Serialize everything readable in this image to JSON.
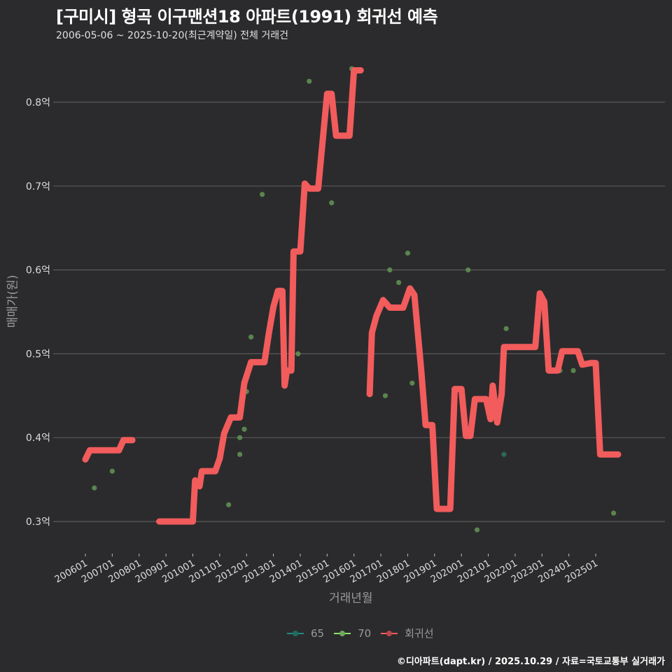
{
  "header": {
    "title": "[구미시] 형곡 이구맨션18 아파트(1991) 회귀선 예측",
    "subtitle": "2006-05-06 ~ 2025-10-20(최근계약일) 전체 거래건"
  },
  "axes": {
    "ylabel": "매매가(원)",
    "xlabel": "거래년월",
    "yticks": [
      "0.3억",
      "0.4억",
      "0.5억",
      "0.6억",
      "0.7억",
      "0.8억"
    ],
    "xticks": [
      "200601",
      "200701",
      "200801",
      "200901",
      "201001",
      "201101",
      "201201",
      "201301",
      "201401",
      "201501",
      "201601",
      "201701",
      "201801",
      "201901",
      "202001",
      "202101",
      "202201",
      "202301",
      "202401",
      "202501"
    ]
  },
  "legend": {
    "items": [
      {
        "label": "65",
        "color": "#1f8a82"
      },
      {
        "label": "70",
        "color": "#8ee26b"
      },
      {
        "label": "회귀선",
        "color": "#f25c5c"
      }
    ]
  },
  "footer": {
    "credit": "©디아파트(dapt.kr) / 2025.10.29 / 자료=국토교통부 실거래가"
  },
  "colors": {
    "background": "#2b2b2d",
    "grid": "#5a5a5a",
    "regression": "#f25c5c",
    "point70": "#5f8f52",
    "point65": "#2f6e5c"
  },
  "chart_data": {
    "type": "line",
    "title": "[구미시] 형곡 이구맨션18 아파트(1991) 회귀선 예측",
    "subtitle": "2006-05-06 ~ 2025-10-20(최근계약일) 전체 거래건",
    "xlabel": "거래년월",
    "ylabel": "매매가(원)",
    "yunit": "억",
    "ylim": [
      0.27,
      0.86
    ],
    "grid": true,
    "legend_position": "bottom",
    "series": [
      {
        "name": "회귀선",
        "type": "step-line",
        "segments": [
          [
            [
              "2006-01",
              0.374
            ],
            [
              "2006-03",
              0.385
            ],
            [
              "2007-04",
              0.385
            ],
            [
              "2007-06",
              0.397
            ],
            [
              "2007-10",
              0.397
            ]
          ],
          [
            [
              "2008-10",
              0.3
            ],
            [
              "2010-01",
              0.3
            ],
            [
              "2010-02",
              0.349
            ],
            [
              "2010-04",
              0.342
            ],
            [
              "2010-05",
              0.36
            ],
            [
              "2010-11",
              0.36
            ],
            [
              "2011-01",
              0.375
            ],
            [
              "2011-03",
              0.405
            ],
            [
              "2011-06",
              0.424
            ],
            [
              "2011-10",
              0.424
            ],
            [
              "2011-12",
              0.465
            ],
            [
              "2012-03",
              0.49
            ],
            [
              "2012-09",
              0.49
            ],
            [
              "2012-11",
              0.525
            ],
            [
              "2013-01",
              0.556
            ],
            [
              "2013-03",
              0.575
            ],
            [
              "2013-05",
              0.575
            ],
            [
              "2013-06",
              0.462
            ],
            [
              "2013-07",
              0.48
            ],
            [
              "2013-09",
              0.48
            ],
            [
              "2013-10",
              0.622
            ],
            [
              "2014-01",
              0.622
            ],
            [
              "2014-03",
              0.703
            ],
            [
              "2014-05",
              0.697
            ],
            [
              "2014-09",
              0.697
            ],
            [
              "2015-01",
              0.81
            ],
            [
              "2015-03",
              0.81
            ],
            [
              "2015-05",
              0.76
            ],
            [
              "2015-11",
              0.76
            ],
            [
              "2016-01",
              0.838
            ],
            [
              "2016-04",
              0.838
            ]
          ],
          [
            [
              "2016-08",
              0.452
            ],
            [
              "2016-09",
              0.525
            ],
            [
              "2016-11",
              0.545
            ],
            [
              "2017-02",
              0.564
            ],
            [
              "2017-05",
              0.555
            ],
            [
              "2017-11",
              0.555
            ],
            [
              "2018-02",
              0.578
            ],
            [
              "2018-04",
              0.57
            ],
            [
              "2018-07",
              0.482
            ],
            [
              "2018-09",
              0.415
            ],
            [
              "2018-12",
              0.415
            ],
            [
              "2019-02",
              0.315
            ],
            [
              "2019-08",
              0.315
            ],
            [
              "2019-10",
              0.458
            ],
            [
              "2020-01",
              0.458
            ],
            [
              "2020-03",
              0.402
            ],
            [
              "2020-05",
              0.402
            ],
            [
              "2020-07",
              0.446
            ],
            [
              "2020-12",
              0.446
            ],
            [
              "2021-02",
              0.422
            ],
            [
              "2021-03",
              0.462
            ],
            [
              "2021-05",
              0.418
            ],
            [
              "2021-07",
              0.452
            ],
            [
              "2021-08",
              0.508
            ],
            [
              "2022-10",
              0.508
            ],
            [
              "2022-12",
              0.572
            ],
            [
              "2023-02",
              0.562
            ],
            [
              "2023-04",
              0.48
            ],
            [
              "2023-08",
              0.48
            ],
            [
              "2023-10",
              0.503
            ],
            [
              "2024-05",
              0.503
            ],
            [
              "2024-07",
              0.487
            ],
            [
              "2024-11",
              0.489
            ],
            [
              "2025-01",
              0.489
            ],
            [
              "2025-03",
              0.38
            ],
            [
              "2025-11",
              0.38
            ]
          ]
        ]
      },
      {
        "name": "70",
        "type": "scatter",
        "points": [
          [
            "2006-05",
            0.34
          ],
          [
            "2007-01",
            0.36
          ],
          [
            "2011-03",
            0.4
          ],
          [
            "2011-05",
            0.32
          ],
          [
            "2011-10",
            0.38
          ],
          [
            "2011-10",
            0.4
          ],
          [
            "2011-12",
            0.41
          ],
          [
            "2012-01",
            0.455
          ],
          [
            "2012-03",
            0.52
          ],
          [
            "2012-08",
            0.69
          ],
          [
            "2013-12",
            0.5
          ],
          [
            "2014-05",
            0.825
          ],
          [
            "2015-03",
            0.68
          ],
          [
            "2015-12",
            0.84
          ],
          [
            "2017-03",
            0.45
          ],
          [
            "2017-05",
            0.6
          ],
          [
            "2017-09",
            0.585
          ],
          [
            "2018-01",
            0.62
          ],
          [
            "2018-03",
            0.465
          ],
          [
            "2020-04",
            0.6
          ],
          [
            "2020-08",
            0.29
          ],
          [
            "2021-09",
            0.53
          ],
          [
            "2023-09",
            0.48
          ],
          [
            "2024-03",
            0.48
          ],
          [
            "2025-09",
            0.31
          ]
        ]
      },
      {
        "name": "65",
        "type": "scatter",
        "points": [
          [
            "2021-08",
            0.38
          ]
        ]
      }
    ]
  }
}
